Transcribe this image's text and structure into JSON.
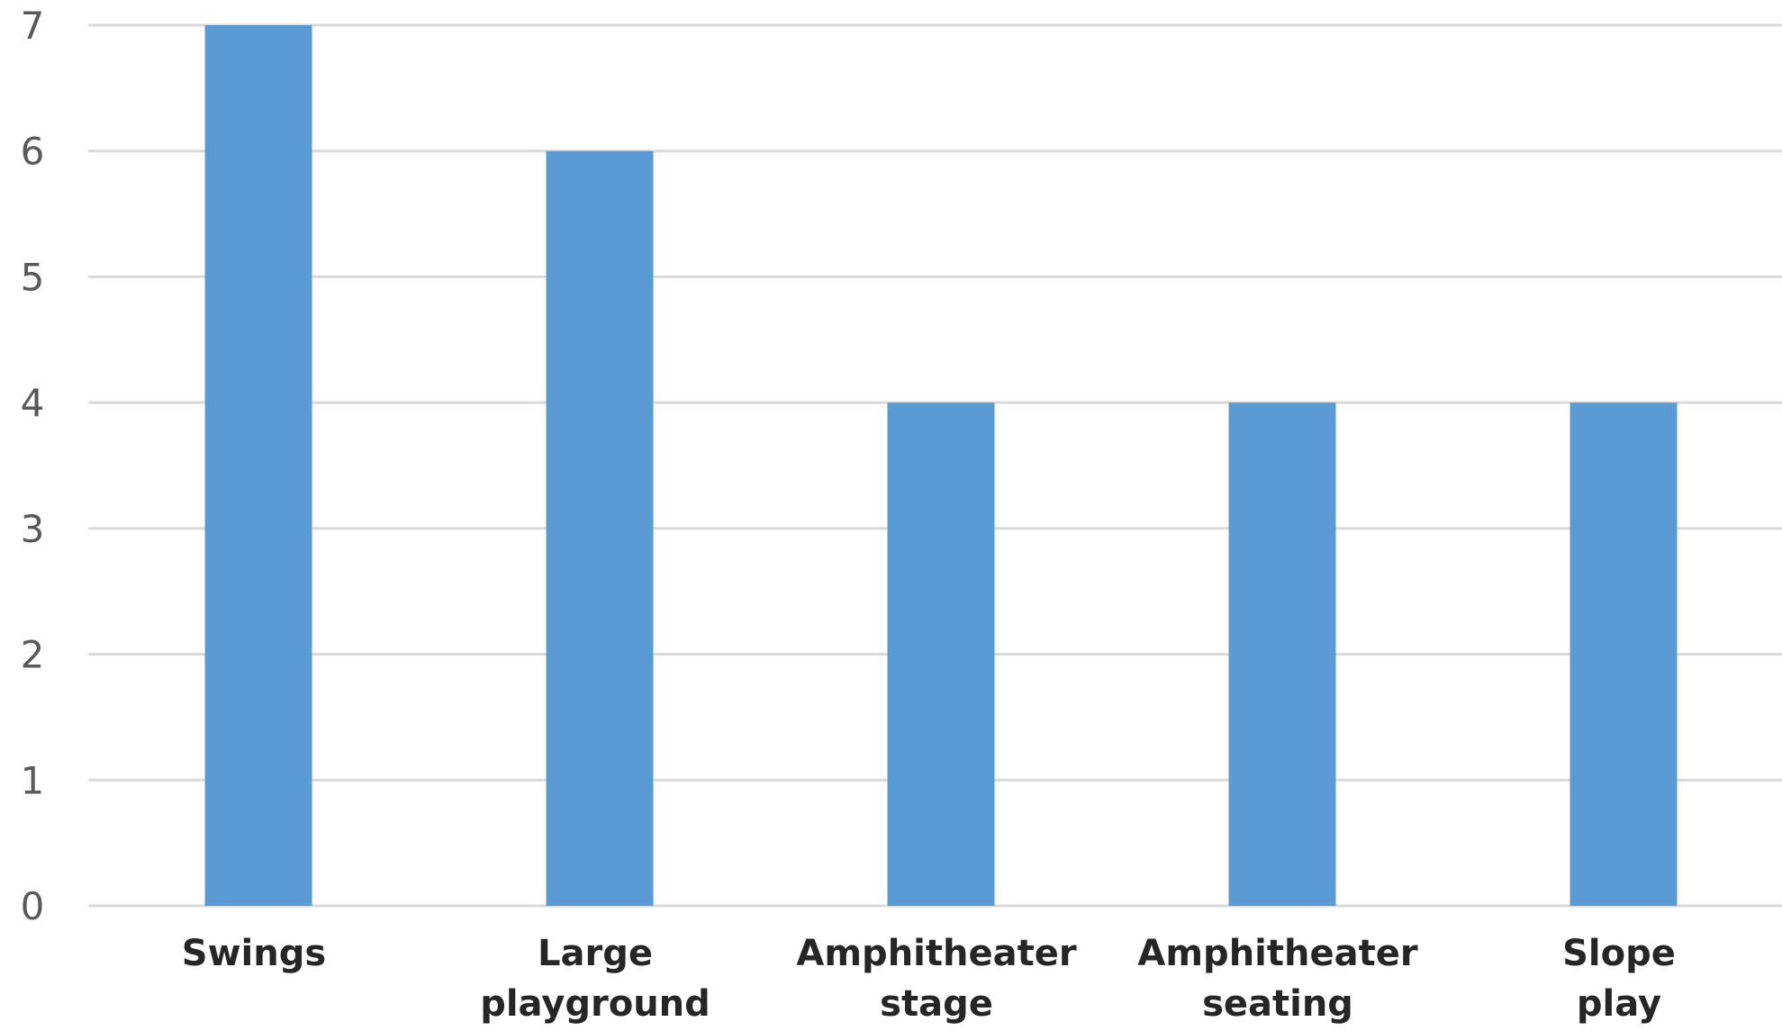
{
  "chart_data": {
    "type": "bar",
    "categories": [
      [
        "Swings"
      ],
      [
        "Large",
        "playground"
      ],
      [
        "Amphitheater",
        "stage"
      ],
      [
        "Amphitheater",
        "seating"
      ],
      [
        "Slope",
        "play"
      ]
    ],
    "values": [
      7,
      6,
      4,
      4,
      4
    ],
    "ylim": [
      0,
      7
    ],
    "yticks": [
      0,
      1,
      2,
      3,
      4,
      5,
      6,
      7
    ],
    "grid": true,
    "colors": {
      "bar": "#5b9bd5",
      "grid": "#d9d9d9",
      "tick_label": "#595959",
      "category_label": "#262626"
    }
  }
}
